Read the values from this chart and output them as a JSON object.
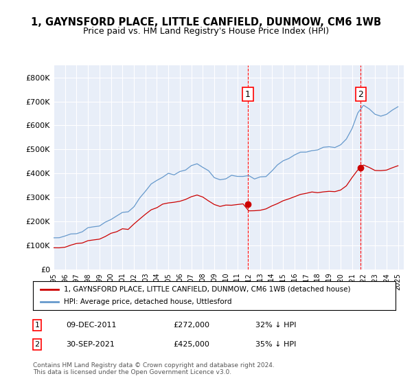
{
  "title": "1, GAYNSFORD PLACE, LITTLE CANFIELD, DUNMOW, CM6 1WB",
  "subtitle": "Price paid vs. HM Land Registry's House Price Index (HPI)",
  "legend_label_red": "1, GAYNSFORD PLACE, LITTLE CANFIELD, DUNMOW, CM6 1WB (detached house)",
  "legend_label_blue": "HPI: Average price, detached house, Uttlesford",
  "annotation1_label": "1",
  "annotation1_date": "09-DEC-2011",
  "annotation1_price": "£272,000",
  "annotation1_hpi": "32% ↓ HPI",
  "annotation2_label": "2",
  "annotation2_date": "30-SEP-2021",
  "annotation2_price": "£425,000",
  "annotation2_hpi": "35% ↓ HPI",
  "footer": "Contains HM Land Registry data © Crown copyright and database right 2024.\nThis data is licensed under the Open Government Licence v3.0.",
  "ylim": [
    0,
    850000
  ],
  "yticks": [
    0,
    100000,
    200000,
    300000,
    400000,
    500000,
    600000,
    700000,
    800000
  ],
  "ytick_labels": [
    "£0",
    "£100K",
    "£200K",
    "£300K",
    "£400K",
    "£500K",
    "£600K",
    "£700K",
    "£800K"
  ],
  "color_red": "#cc0000",
  "color_blue": "#6699cc",
  "background_plot": "#e8eef8",
  "purchase1_year": 2011.92,
  "purchase1_price": 272000,
  "purchase2_year": 2021.75,
  "purchase2_price": 425000,
  "xmin": 1995,
  "xmax": 2025.5
}
